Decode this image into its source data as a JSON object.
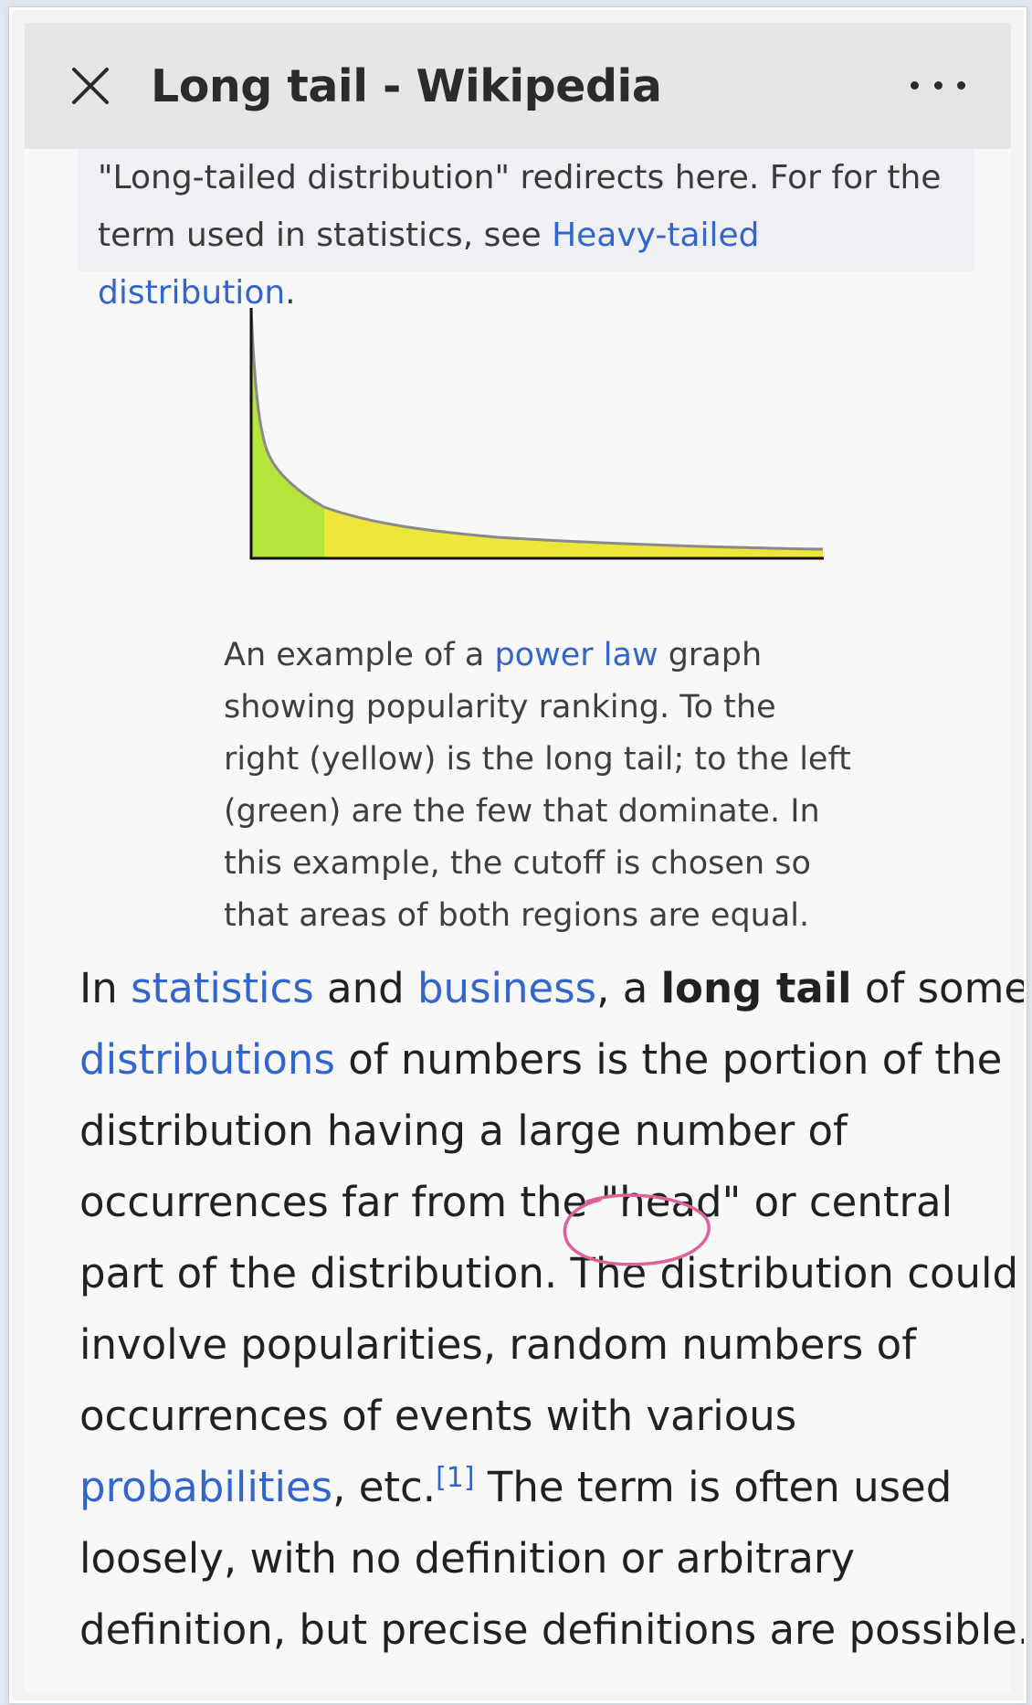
{
  "topbar": {
    "title": "Long tail - Wikipedia",
    "close_icon": "close-icon",
    "more_icon": "more-options-icon"
  },
  "hatnote": {
    "text_1": "\"Long-tailed distribution\" redirects here. For for the",
    "text_2": "term used in statistics, see ",
    "link": "Heavy-tailed distribution",
    "text_3": "."
  },
  "figure": {
    "colors": {
      "head": "#b5e53a",
      "tail": "#ece73a",
      "curve": "#8a8a8a",
      "axis": "#111111"
    },
    "caption": {
      "l1_a": "An example of a ",
      "l1_link": "power law",
      "l1_b": " graph",
      "l2": "showing popularity ranking. To the",
      "l3": "right (yellow) is the long tail; to the left",
      "l4": "(green) are the few that dominate. In",
      "l5": "this example, the cutoff is chosen so",
      "l6": "that areas of both regions are equal."
    }
  },
  "paragraph": {
    "l1_a": "In ",
    "l1_link1": "statistics",
    "l1_b": " and ",
    "l1_link2": "business",
    "l1_c": ", a ",
    "l1_bold": "long tail",
    "l1_d": " of some",
    "l2_link": "distributions",
    "l2_a": " of numbers is the portion of the",
    "l3": "distribution having a large number of",
    "l4": "occurrences far from the \"head\" or central",
    "l5": "part of the distribution. The distribution could",
    "l6": "involve popularities, random numbers of",
    "l7": "occurrences of events with various",
    "l8_link": "probabilities",
    "l8_a": ", etc.",
    "l8_ref": "[1]",
    "l8_b": " The term is often used",
    "l9": "loosely, with no definition or arbitrary",
    "l10": "definition, but precise definitions are possible."
  },
  "annotation": {
    "color": "#e0609a"
  }
}
